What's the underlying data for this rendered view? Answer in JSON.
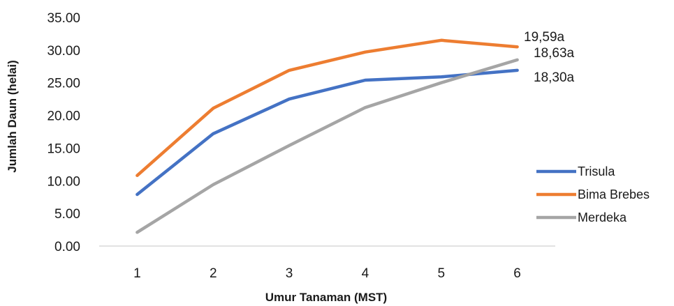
{
  "chart_data": {
    "type": "line",
    "title": "",
    "xlabel": "Umur Tanaman (MST)",
    "ylabel": "Jumlah Daun (helai)",
    "categories": [
      "1",
      "2",
      "3",
      "4",
      "5",
      "6"
    ],
    "ylim": [
      0,
      35
    ],
    "yticks": [
      "0.00",
      "5.00",
      "10.00",
      "15.00",
      "20.00",
      "25.00",
      "30.00",
      "35.00"
    ],
    "grid": false,
    "legend_position": "right",
    "series": [
      {
        "name": "Trisula",
        "color": "#4472C4",
        "values": [
          7.9,
          17.2,
          22.5,
          25.4,
          25.9,
          26.9
        ]
      },
      {
        "name": "Bima Brebes",
        "color": "#ED7D31",
        "values": [
          10.8,
          21.1,
          26.9,
          29.7,
          31.5,
          30.5
        ]
      },
      {
        "name": "Merdeka",
        "color": "#A5A5A5",
        "values": [
          2.1,
          9.4,
          15.4,
          21.2,
          25.0,
          28.5
        ]
      }
    ],
    "annotations": [
      "19,59a",
      "18,63a",
      "18,30a"
    ]
  }
}
